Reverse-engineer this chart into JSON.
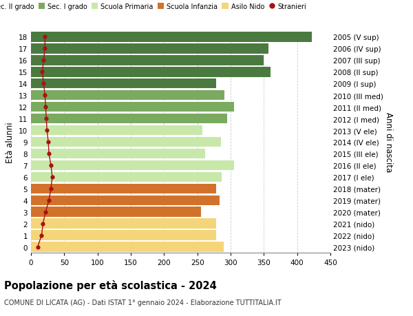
{
  "ages": [
    0,
    1,
    2,
    3,
    4,
    5,
    6,
    7,
    8,
    9,
    10,
    11,
    12,
    13,
    14,
    15,
    16,
    17,
    18
  ],
  "bar_values": [
    290,
    278,
    278,
    255,
    283,
    278,
    287,
    305,
    262,
    285,
    258,
    295,
    305,
    291,
    278,
    360,
    350,
    357,
    422
  ],
  "stranieri": [
    10,
    16,
    18,
    22,
    27,
    30,
    32,
    30,
    27,
    26,
    24,
    23,
    22,
    21,
    19,
    17,
    19,
    21,
    21
  ],
  "bar_colors": {
    "sec2": "#4a7a3f",
    "sec1": "#7aaa5f",
    "primaria": "#c8e8aa",
    "infanzia": "#d2722a",
    "nido": "#f5d57a"
  },
  "age_groups": {
    "sec2": [
      14,
      15,
      16,
      17,
      18
    ],
    "sec1": [
      11,
      12,
      13
    ],
    "primaria": [
      6,
      7,
      8,
      9,
      10
    ],
    "infanzia": [
      3,
      4,
      5
    ],
    "nido": [
      0,
      1,
      2
    ]
  },
  "right_labels": {
    "18": "2005 (V sup)",
    "17": "2006 (IV sup)",
    "16": "2007 (III sup)",
    "15": "2008 (II sup)",
    "14": "2009 (I sup)",
    "13": "2010 (III med)",
    "12": "2011 (II med)",
    "11": "2012 (I med)",
    "10": "2013 (V ele)",
    "9": "2014 (IV ele)",
    "8": "2015 (III ele)",
    "7": "2016 (II ele)",
    "6": "2017 (I ele)",
    "5": "2018 (mater)",
    "4": "2019 (mater)",
    "3": "2020 (mater)",
    "2": "2021 (nido)",
    "1": "2022 (nido)",
    "0": "2023 (nido)"
  },
  "title": "Popolazione per età scolastica - 2024",
  "subtitle": "COMUNE DI LICATA (AG) - Dati ISTAT 1° gennaio 2024 - Elaborazione TUTTITALIA.IT",
  "xlabel_right": "Anni di nascita",
  "ylabel": "Età alunni",
  "xlim": [
    0,
    450
  ],
  "xticks": [
    0,
    50,
    100,
    150,
    200,
    250,
    300,
    350,
    400,
    450
  ],
  "stranieri_color": "#aa1111",
  "background_color": "#ffffff",
  "grid_color": "#cccccc"
}
